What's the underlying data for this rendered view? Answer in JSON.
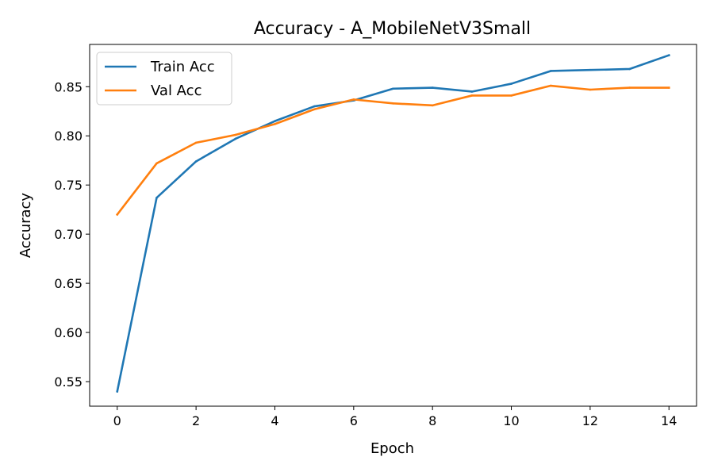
{
  "chart_data": {
    "type": "line",
    "title": "Accuracy - A_MobileNetV3Small",
    "xlabel": "Epoch",
    "ylabel": "Accuracy",
    "x": [
      0,
      1,
      2,
      3,
      4,
      5,
      6,
      7,
      8,
      9,
      10,
      11,
      12,
      13,
      14
    ],
    "xlim": [
      -0.7,
      14.7
    ],
    "ylim": [
      0.525,
      0.893
    ],
    "xticks": [
      0,
      2,
      4,
      6,
      8,
      10,
      12,
      14
    ],
    "yticks": [
      0.55,
      0.6,
      0.65,
      0.7,
      0.75,
      0.8,
      0.85
    ],
    "xtick_labels": [
      "0",
      "2",
      "4",
      "6",
      "8",
      "10",
      "12",
      "14"
    ],
    "ytick_labels": [
      "0.55",
      "0.60",
      "0.65",
      "0.70",
      "0.75",
      "0.80",
      "0.85"
    ],
    "grid": false,
    "legend_position": "upper-left",
    "series": [
      {
        "name": "Train Acc",
        "color": "#1f77b4",
        "values": [
          0.54,
          0.737,
          0.774,
          0.797,
          0.815,
          0.83,
          0.836,
          0.848,
          0.849,
          0.845,
          0.853,
          0.866,
          0.867,
          0.868,
          0.882
        ]
      },
      {
        "name": "Val Acc",
        "color": "#ff7f0e",
        "values": [
          0.72,
          0.772,
          0.793,
          0.801,
          0.812,
          0.827,
          0.837,
          0.833,
          0.831,
          0.841,
          0.841,
          0.851,
          0.847,
          0.849,
          0.849
        ]
      }
    ]
  }
}
